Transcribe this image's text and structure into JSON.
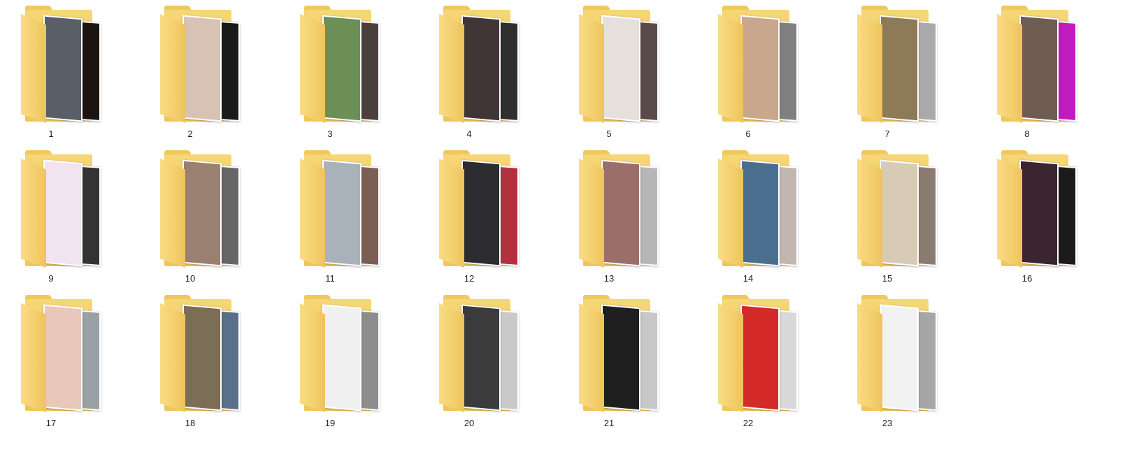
{
  "explorer": {
    "folders": [
      {
        "name": "1",
        "photo_front": "#5a5f67",
        "photo_back": "#1b1410"
      },
      {
        "name": "2",
        "photo_front": "#d7c2b3",
        "photo_back": "#1a1a1a"
      },
      {
        "name": "3",
        "photo_front": "#6c8f58",
        "photo_back": "#4a3f3d"
      },
      {
        "name": "4",
        "photo_front": "#403636",
        "photo_back": "#2f2f2f"
      },
      {
        "name": "5",
        "photo_front": "#e6e0dd",
        "photo_back": "#5a4a4a"
      },
      {
        "name": "6",
        "photo_front": "#c8a78d",
        "photo_back": "#808080"
      },
      {
        "name": "7",
        "photo_front": "#8d7a56",
        "photo_back": "#aaaaaa"
      },
      {
        "name": "8",
        "photo_front": "#6f5c52",
        "photo_back": "#c01bbf"
      },
      {
        "name": "9",
        "photo_front": "#f1e3ef",
        "photo_back": "#333333"
      },
      {
        "name": "10",
        "photo_front": "#9a8070",
        "photo_back": "#666666"
      },
      {
        "name": "11",
        "photo_front": "#a9b2b8",
        "photo_back": "#7b5f55"
      },
      {
        "name": "12",
        "photo_front": "#2d2d31",
        "photo_back": "#b3313f"
      },
      {
        "name": "13",
        "photo_front": "#9a6f6a",
        "photo_back": "#b6b6b6"
      },
      {
        "name": "14",
        "photo_front": "#4a6f8e",
        "photo_back": "#c2b6b0"
      },
      {
        "name": "15",
        "photo_front": "#d8cbb5",
        "photo_back": "#8c7c70"
      },
      {
        "name": "16",
        "photo_front": "#3a2530",
        "photo_back": "#1b1b1b"
      },
      {
        "name": "17",
        "photo_front": "#e8c8b8",
        "photo_back": "#9aa1a5"
      },
      {
        "name": "18",
        "photo_front": "#7c6d56",
        "photo_back": "#5a6f8a"
      },
      {
        "name": "19",
        "photo_front": "#f0f0f0",
        "photo_back": "#8d8d8d"
      },
      {
        "name": "20",
        "photo_front": "#3b3b3b",
        "photo_back": "#c9c9c9"
      },
      {
        "name": "21",
        "photo_front": "#1f1f1f",
        "photo_back": "#c7c7c7"
      },
      {
        "name": "22",
        "photo_front": "#d42a2a",
        "photo_back": "#d8d8d8"
      },
      {
        "name": "23",
        "photo_front": "#f2f2f2",
        "photo_back": "#a6a6a6"
      }
    ],
    "folder_color": "#f3cf6d"
  }
}
